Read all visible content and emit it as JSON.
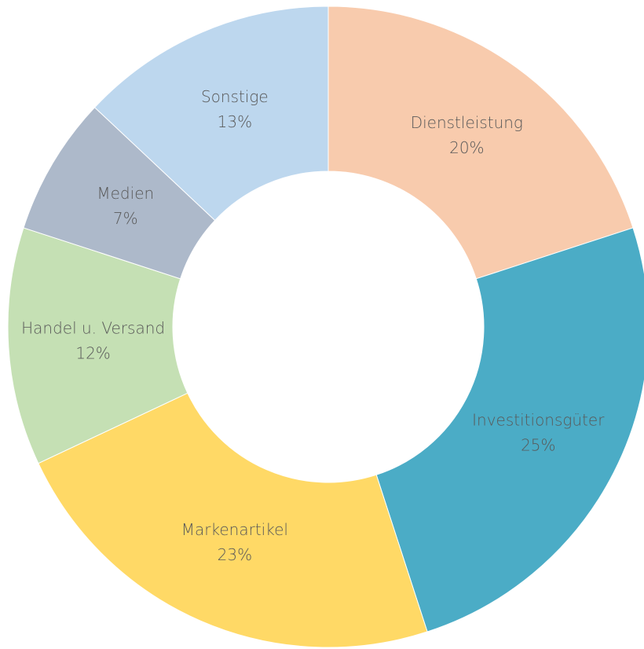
{
  "chart_data": {
    "type": "donut",
    "categories": [
      "Dienstleistung",
      "Investitionsgüter",
      "Markenartikel",
      "Handel u. Versand",
      "Medien",
      "Sonstige"
    ],
    "values": [
      20,
      25,
      23,
      12,
      7,
      13
    ],
    "value_labels": [
      "20%",
      "25%",
      "23%",
      "12%",
      "7%",
      "13%"
    ],
    "colors": [
      "#f8cbad",
      "#4bacc6",
      "#ffd966",
      "#c5e0b4",
      "#adb9ca",
      "#bdd7ee"
    ]
  }
}
